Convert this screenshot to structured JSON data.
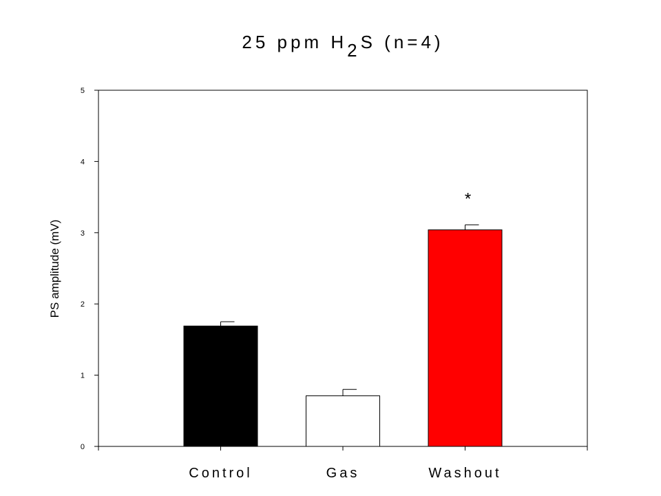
{
  "chart_data": {
    "type": "bar",
    "title": {
      "prefix": "25 ppm H",
      "subscript": "2",
      "suffix": "S (n=4)"
    },
    "categories": [
      "Control",
      "Gas",
      "Washout"
    ],
    "values": [
      1.69,
      0.71,
      3.04
    ],
    "errors": [
      0.06,
      0.09,
      0.07
    ],
    "colors": [
      "#000000",
      "#ffffff",
      "#ff0000"
    ],
    "xlabel": "",
    "ylabel": "PS amplitude (mV)",
    "ylim": [
      0,
      5
    ],
    "yticks": [
      0,
      1,
      2,
      3,
      4,
      5
    ],
    "grid": false,
    "annotations": [
      {
        "category": "Washout",
        "text": "*"
      }
    ]
  }
}
